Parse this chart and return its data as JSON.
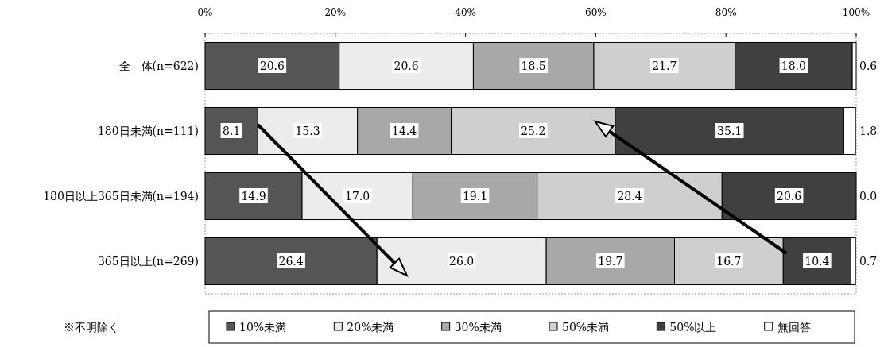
{
  "chart_data": {
    "type": "bar",
    "orientation": "horizontal",
    "stacked": true,
    "categories": [
      "全　体(n=622)",
      "180日未満(n=111)",
      "180日以上365日未満(n=194)",
      "365日以上(n=269)"
    ],
    "series": [
      {
        "name": "10%未満",
        "color": "#555555",
        "values": [
          20.6,
          8.1,
          14.9,
          26.4
        ],
        "value_labels": [
          "20.6",
          "8.1",
          "14.9",
          "26.4"
        ]
      },
      {
        "name": "20%未満",
        "color": "#ececec",
        "values": [
          20.6,
          15.3,
          17.0,
          26.0
        ],
        "value_labels": [
          "20.6",
          "15.3",
          "17.0",
          "26.0"
        ]
      },
      {
        "name": "30%未満",
        "color": "#a8a8a8",
        "values": [
          18.5,
          14.4,
          19.1,
          19.7
        ],
        "value_labels": [
          "18.5",
          "14.4",
          "19.1",
          "19.7"
        ]
      },
      {
        "name": "50%未満",
        "color": "#cfcfcf",
        "values": [
          21.7,
          25.2,
          28.4,
          16.7
        ],
        "value_labels": [
          "21.7",
          "25.2",
          "28.4",
          "16.7"
        ]
      },
      {
        "name": "50%以上",
        "color": "#404040",
        "values": [
          18.0,
          35.1,
          20.6,
          10.4
        ],
        "value_labels": [
          "18.0",
          "35.1",
          "20.6",
          "10.4"
        ]
      },
      {
        "name": "無回答",
        "color": "#ffffff",
        "values": [
          0.6,
          1.8,
          0.0,
          0.7
        ],
        "value_labels": [
          "0.6",
          "1.8",
          "0.0",
          "0.7"
        ]
      }
    ],
    "xlim": [
      0,
      100
    ],
    "xticks": [
      {
        "value": 0,
        "label": "0%"
      },
      {
        "value": 20,
        "label": "20%"
      },
      {
        "value": 40,
        "label": "40%"
      },
      {
        "value": 60,
        "label": "60%"
      },
      {
        "value": 80,
        "label": "80%"
      },
      {
        "value": 100,
        "label": "100%"
      }
    ],
    "legend": "bottom",
    "annotations": [
      "※不明除く"
    ]
  }
}
